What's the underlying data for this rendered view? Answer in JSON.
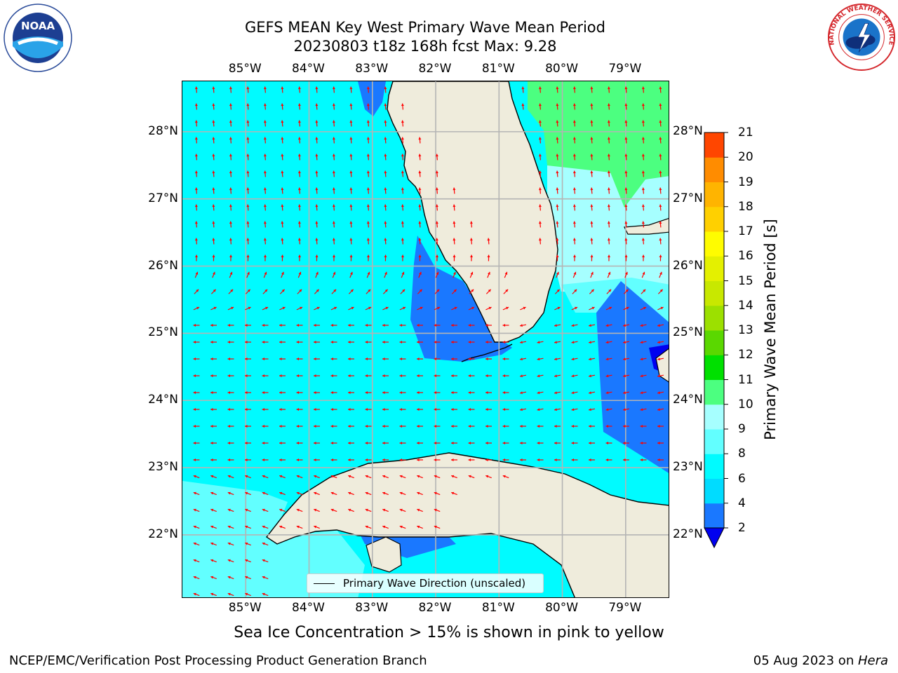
{
  "title": {
    "line1": "GEFS MEAN Key West Primary Wave Mean Period",
    "line2": "20230803 t18z 168h fcst    Max: 9.28"
  },
  "logos": {
    "left": "NOAA",
    "left_ring_text": "NATIONAL OCEANIC AND ATMOSPHERIC ADMINISTRATION · U.S. DEPARTMENT OF COMMERCE",
    "right_ring_text": "NATIONAL WEATHER SERVICE"
  },
  "map": {
    "lon_labels": [
      "85°W",
      "84°W",
      "83°W",
      "82°W",
      "81°W",
      "80°W",
      "79°W"
    ],
    "lat_labels": [
      "28°N",
      "27°N",
      "26°N",
      "25°N",
      "24°N",
      "23°N",
      "22°N"
    ],
    "lon_values": [
      -85,
      -84,
      -83,
      -82,
      -81,
      -80,
      -79
    ],
    "lat_values": [
      28,
      27,
      26,
      25,
      24,
      23,
      22
    ],
    "extent": {
      "lon": [
        -86,
        -78.3
      ],
      "lat": [
        21.05,
        28.75
      ]
    },
    "land_color": "#efecdc",
    "coast_color": "#000000",
    "grid_color": "#b4b4b4",
    "arrow_color": "#ff0000"
  },
  "colorbar": {
    "label": "Primary Wave Mean Period [s]",
    "ticks": [
      "2",
      "4",
      "6",
      "8",
      "9",
      "10",
      "11",
      "12",
      "13",
      "14",
      "15",
      "16",
      "17",
      "18",
      "19",
      "20",
      "21"
    ],
    "levels": [
      2,
      4,
      6,
      8,
      9,
      10,
      11,
      12,
      13,
      14,
      15,
      16,
      17,
      18,
      19,
      20,
      21
    ],
    "colors": [
      "#1a78ff",
      "#00dcff",
      "#00fbff",
      "#62ffff",
      "#a6ffff",
      "#4cff80",
      "#00e000",
      "#5ad800",
      "#9ce000",
      "#c8e800",
      "#e4f000",
      "#fffc00",
      "#ffd000",
      "#ffb400",
      "#ff8c00",
      "#ff4600",
      "#ff0000"
    ],
    "under_color": "#0000f0",
    "extend": "min"
  },
  "legend": {
    "label": "Primary Wave Direction (unscaled)"
  },
  "note": "Sea Ice Concentration > 15% is shown in pink to yellow",
  "footer": {
    "left": "NCEP/EMC/Verification Post Processing Product Generation Branch",
    "date": "05 Aug 2023 on ",
    "machine": "Hera"
  }
}
